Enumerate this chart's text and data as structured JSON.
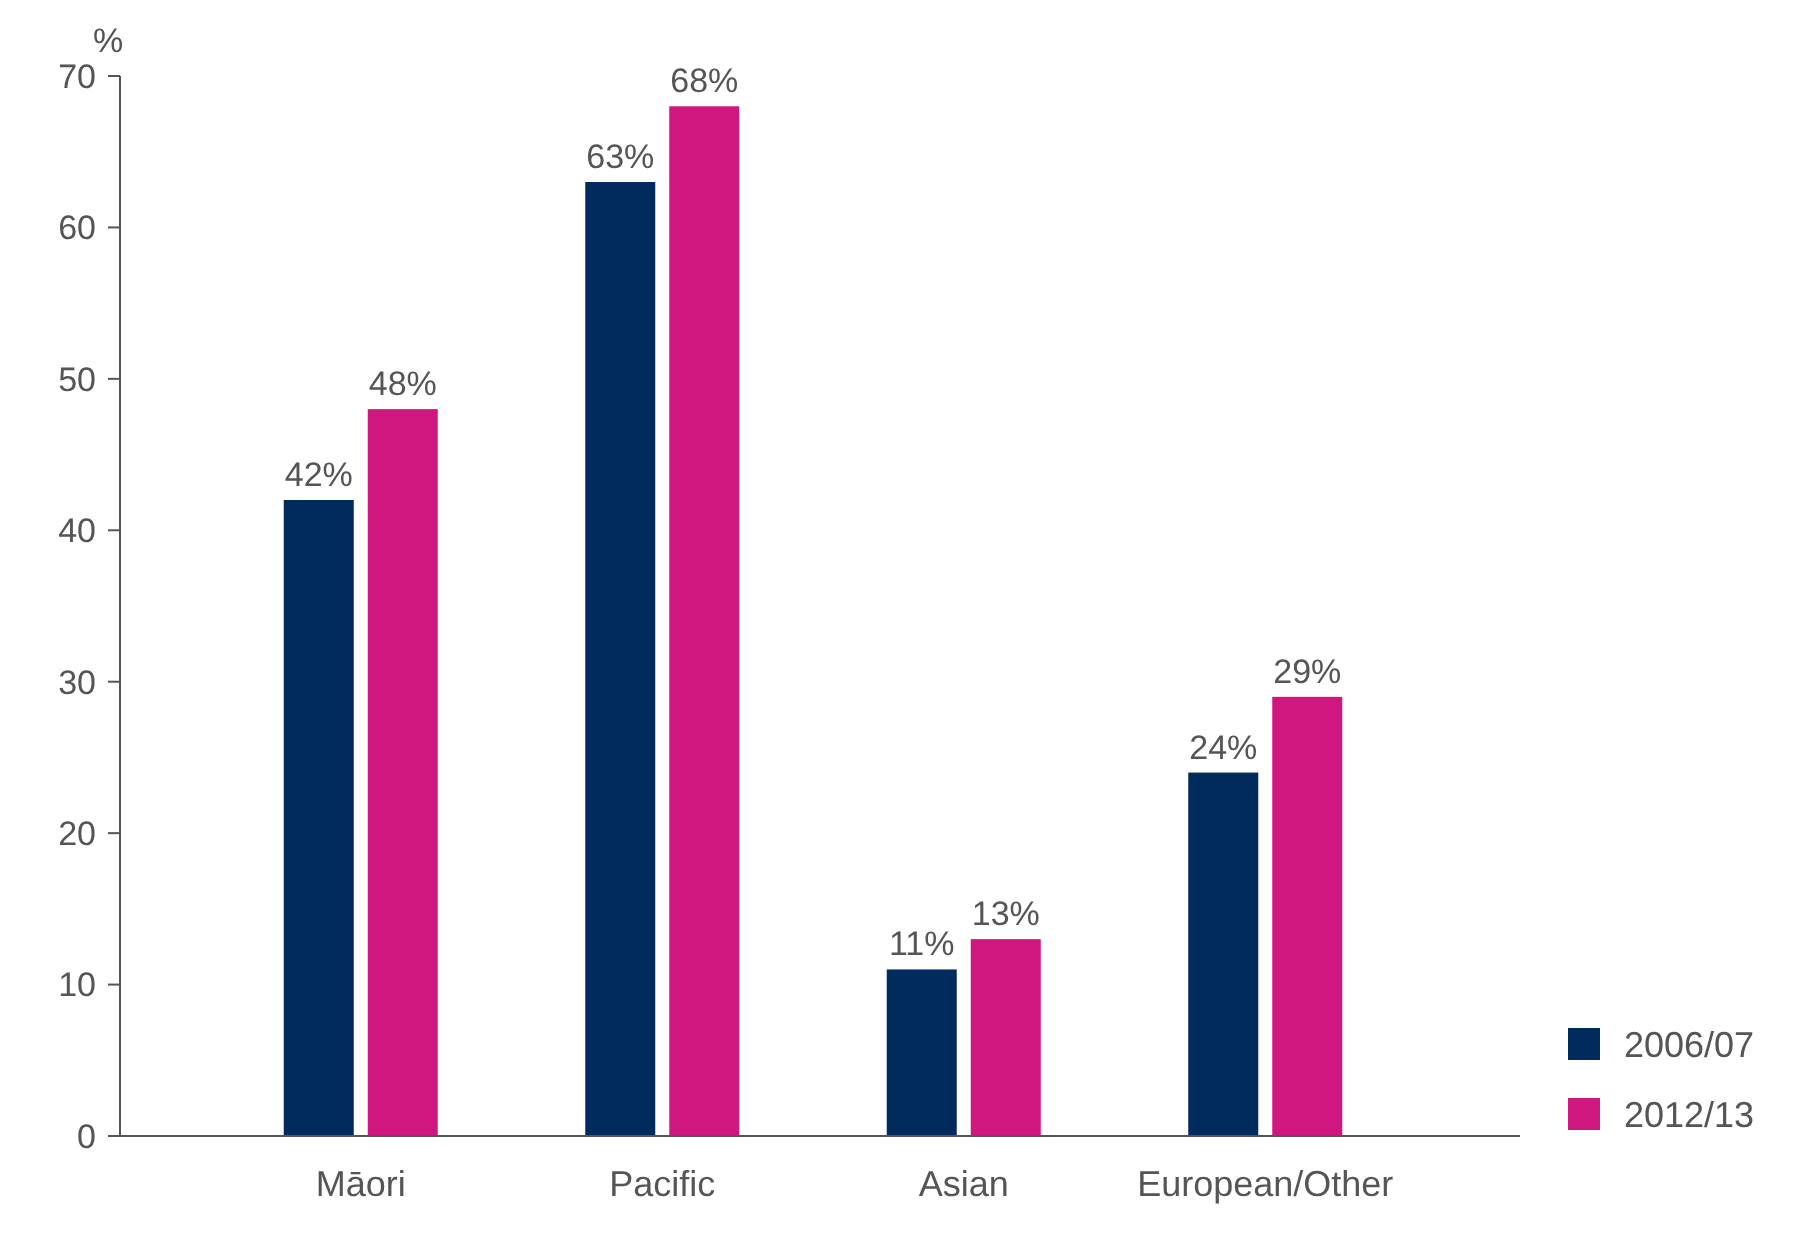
{
  "chart_data": {
    "type": "bar",
    "ylabel": "%",
    "categories": [
      "Māori",
      "Pacific",
      "Asian",
      "European/Other"
    ],
    "series": [
      {
        "name": "2006/07",
        "color": "#002b5c",
        "values": [
          42,
          63,
          11,
          24
        ],
        "value_labels": [
          "42%",
          "63%",
          "11%",
          "24%"
        ]
      },
      {
        "name": "2012/13",
        "color": "#d0167f",
        "values": [
          48,
          68,
          13,
          29
        ],
        "value_labels": [
          "48%",
          "68%",
          "13%",
          "29%"
        ]
      }
    ],
    "ylim": [
      0,
      70
    ],
    "yticks": [
      0,
      10,
      20,
      30,
      40,
      50,
      60,
      70
    ],
    "grid": false,
    "legend": "bottom right"
  }
}
